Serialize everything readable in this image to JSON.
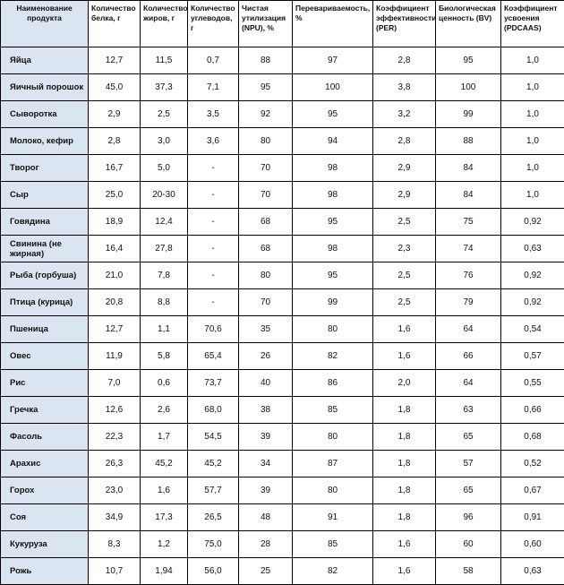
{
  "table": {
    "headers": [
      "Наименование продукта",
      "Количество белка, г",
      "Количество жиров, г",
      "Количество углеводов, г",
      "Чистая утилизация (NPU), %",
      "Перевариваемость, %",
      "Коэффициент эффективности (PER)",
      "Биологическая ценность (BV)",
      "Коэффициент усвоения (PDCAAS)"
    ],
    "rows": [
      [
        "Яйца",
        "12,7",
        "11,5",
        "0,7",
        "88",
        "97",
        "2,8",
        "95",
        "1,0"
      ],
      [
        "Яичный порошок",
        "45,0",
        "37,3",
        "7,1",
        "95",
        "100",
        "3,8",
        "100",
        "1,0"
      ],
      [
        "Сыворотка",
        "2,9",
        "2,5",
        "3,5",
        "92",
        "95",
        "3,2",
        "99",
        "1,0"
      ],
      [
        "Молоко, кефир",
        "2,8",
        "3,0",
        "3,6",
        "80",
        "94",
        "2,8",
        "88",
        "1,0"
      ],
      [
        "Творог",
        "16,7",
        "5,0",
        "-",
        "70",
        "98",
        "2,9",
        "84",
        "1,0"
      ],
      [
        "Сыр",
        "25,0",
        "20-30",
        "-",
        "70",
        "98",
        "2,9",
        "84",
        "1,0"
      ],
      [
        "Говядина",
        "18,9",
        "12,4",
        "-",
        "68",
        "95",
        "2,5",
        "75",
        "0,92"
      ],
      [
        "Свинина (не жирная)",
        "16,4",
        "27,8",
        "-",
        "68",
        "98",
        "2,3",
        "74",
        "0,63"
      ],
      [
        "Рыба (горбуша)",
        "21,0",
        "7,8",
        "-",
        "80",
        "95",
        "2,5",
        "76",
        "0,92"
      ],
      [
        "Птица (курица)",
        "20,8",
        "8,8",
        "-",
        "70",
        "99",
        "2,5",
        "79",
        "0,92"
      ],
      [
        "Пшеница",
        "12,7",
        "1,1",
        "70,6",
        "35",
        "80",
        "1,6",
        "64",
        "0,54"
      ],
      [
        "Овес",
        "11,9",
        "5,8",
        "65,4",
        "26",
        "82",
        "1,6",
        "66",
        "0,57"
      ],
      [
        "Рис",
        "7,0",
        "0,6",
        "73,7",
        "40",
        "86",
        "2,0",
        "64",
        "0,55"
      ],
      [
        "Гречка",
        "12,6",
        "2,6",
        "68,0",
        "38",
        "85",
        "1,8",
        "63",
        "0,66"
      ],
      [
        "Фасоль",
        "22,3",
        "1,7",
        "54,5",
        "39",
        "80",
        "1,8",
        "65",
        "0,68"
      ],
      [
        "Арахис",
        "26,3",
        "45,2",
        "45,2",
        "34",
        "87",
        "1,8",
        "57",
        "0,52"
      ],
      [
        "Горох",
        "23,0",
        "1,6",
        "57,7",
        "39",
        "80",
        "1,8",
        "65",
        "0,67"
      ],
      [
        "Соя",
        "34,9",
        "17,3",
        "26,5",
        "48",
        "91",
        "1,8",
        "96",
        "0,91"
      ],
      [
        "Кукуруза",
        "8,3",
        "1,2",
        "75,0",
        "28",
        "85",
        "1,6",
        "60",
        "0,60"
      ],
      [
        "Рожь",
        "10,7",
        "1,94",
        "56,0",
        "25",
        "82",
        "1,6",
        "58",
        "0,63"
      ]
    ]
  },
  "colors": {
    "name_column_bg": "#dbe5f1",
    "border": "#000000"
  }
}
